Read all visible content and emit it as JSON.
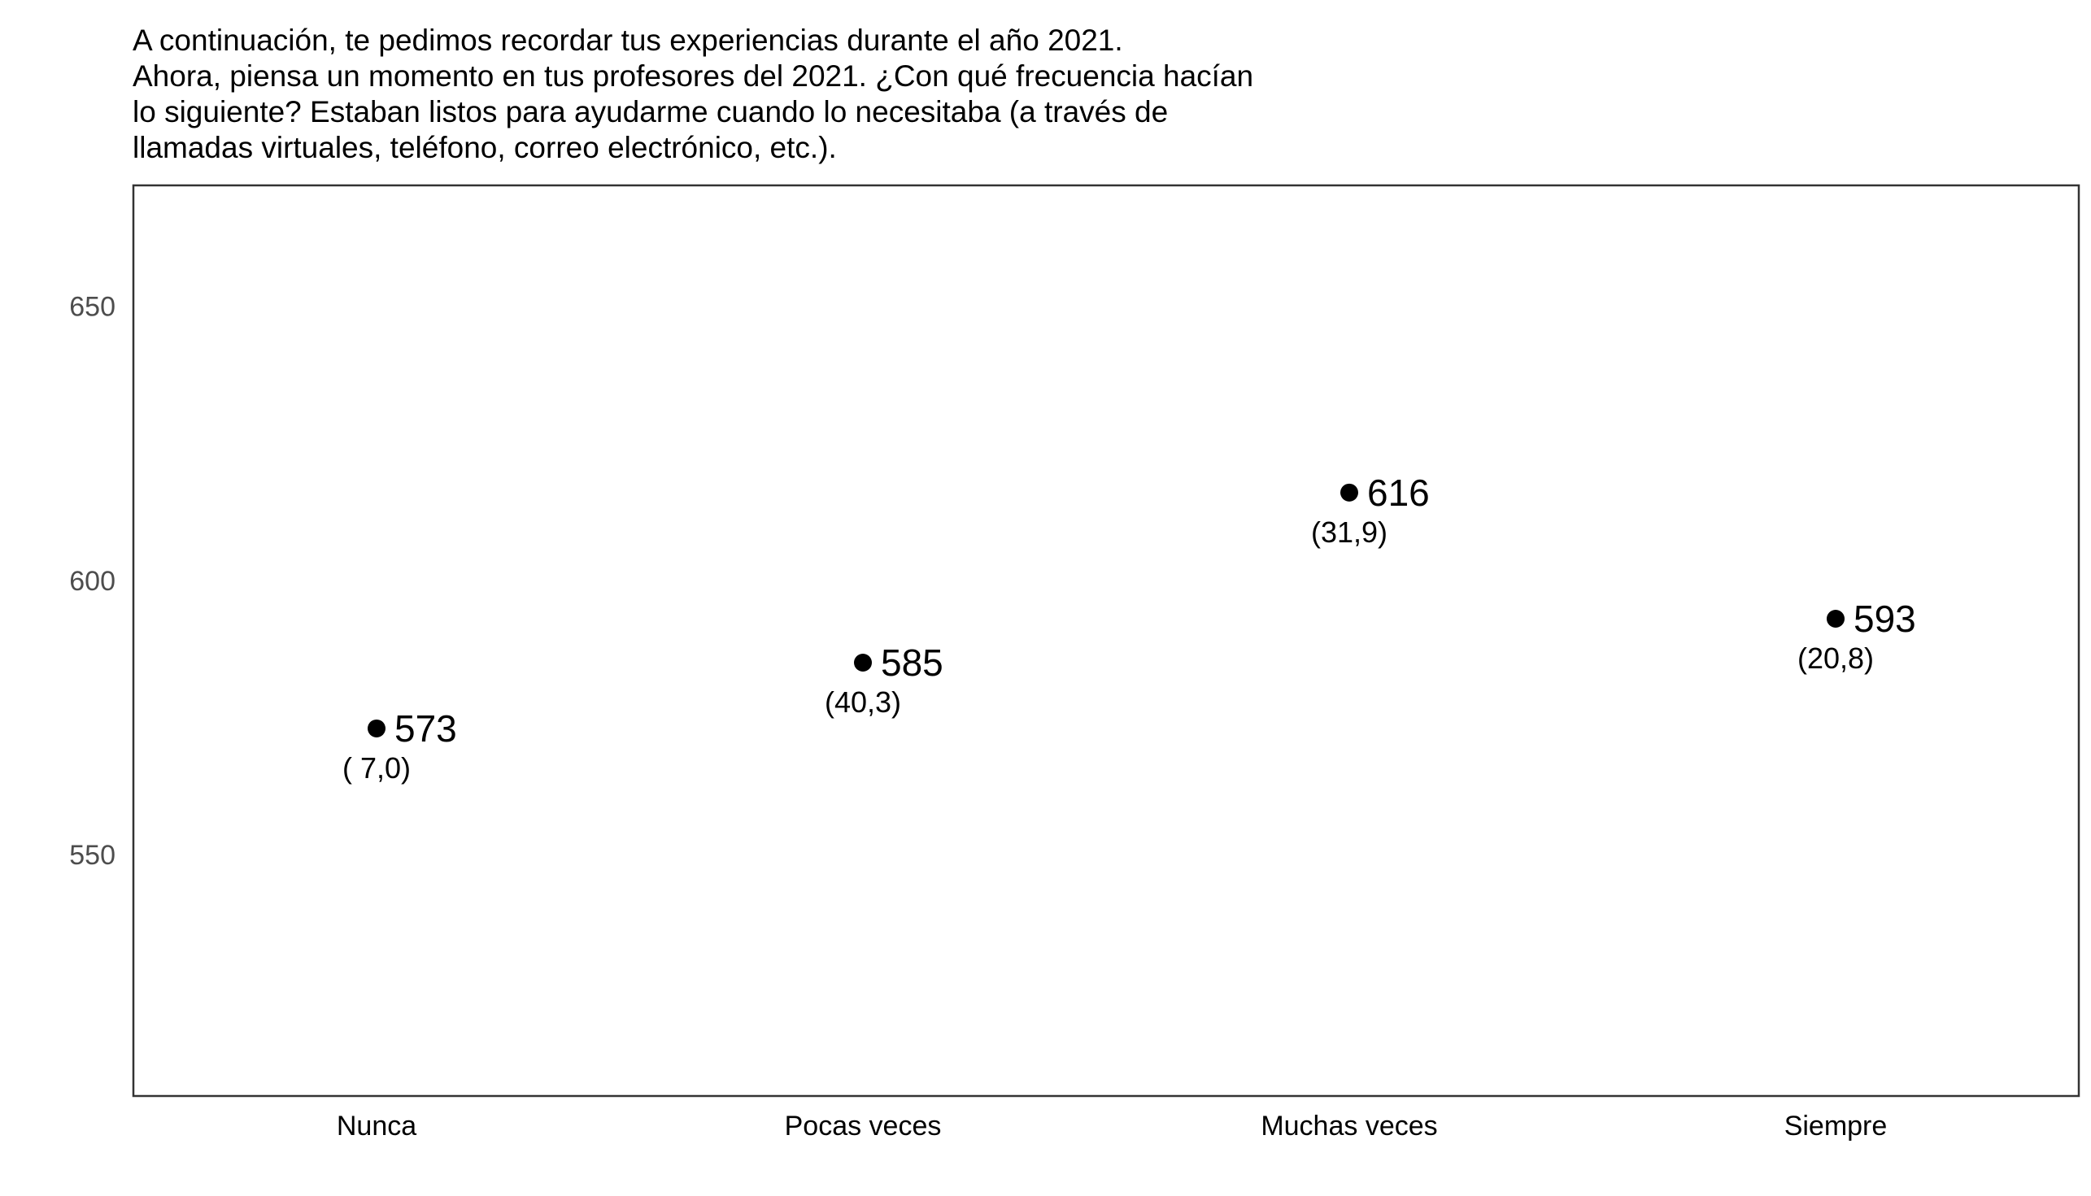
{
  "title_lines": [
    "A continuación, te pedimos recordar tus experiencias durante el año 2021.",
    "Ahora, piensa un momento en tus profesores del 2021. ¿Con qué frecuencia hacían",
    "lo siguiente? Estaban listos para ayudarme cuando lo necesitaba (a través de",
    "llamadas virtuales, teléfono, correo electrónico, etc.)."
  ],
  "chart_data": {
    "type": "scatter",
    "categories": [
      "Nunca",
      "Pocas veces",
      "Muchas veces",
      "Siempre"
    ],
    "values": [
      573,
      585,
      616,
      593
    ],
    "value_labels": [
      "573",
      "585",
      "616",
      "593"
    ],
    "percent_labels": [
      "( 7,0)",
      "(40,3)",
      "(31,9)",
      "(20,8)"
    ],
    "yticks": [
      550,
      600,
      650
    ],
    "ylim": [
      506,
      672
    ],
    "xlabel": "",
    "ylabel": "",
    "grid": false,
    "point_color": "#000000"
  }
}
